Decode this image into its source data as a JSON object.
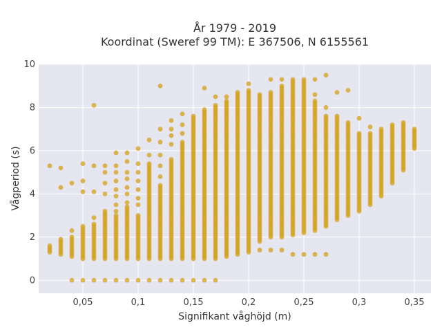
{
  "chart_data": {
    "type": "scatter",
    "title_line1": "År 1979 - 2019",
    "title_line2": "Koordinat (Sweref 99 TM): E 367506, N 6155561",
    "xlabel": "Signifikant våghöjd (m)",
    "ylabel": "Vågperiod (s)",
    "xlim": [
      0.01,
      0.365
    ],
    "ylim": [
      -0.6,
      10
    ],
    "x_ticks": [
      0.05,
      0.1,
      0.15,
      0.2,
      0.25,
      0.3,
      0.35
    ],
    "x_tick_labels": [
      "0,05",
      "0,1",
      "0,15",
      "0,2",
      "0,25",
      "0,3",
      "0,35"
    ],
    "y_ticks": [
      0,
      2,
      4,
      6,
      8,
      10
    ],
    "y_tick_labels": [
      "0",
      "2",
      "4",
      "6",
      "8",
      "10"
    ],
    "grid": true,
    "marker_color": "#D4A017",
    "plot_bg": "#E5E6F0",
    "columns": [
      {
        "x": 0.02,
        "ymin": 1.3,
        "ymax": 1.6,
        "extra": [
          5.3
        ]
      },
      {
        "x": 0.03,
        "ymin": 1.2,
        "ymax": 1.9,
        "extra": [
          5.2,
          4.3
        ]
      },
      {
        "x": 0.04,
        "ymin": 1.1,
        "ymax": 2.0,
        "extra": [
          2.3,
          4.5,
          0
        ]
      },
      {
        "x": 0.05,
        "ymin": 1.0,
        "ymax": 2.5,
        "extra": [
          4.1,
          4.6,
          5.4,
          0
        ]
      },
      {
        "x": 0.06,
        "ymin": 1.0,
        "ymax": 2.6,
        "extra": [
          4.1,
          5.3,
          8.1,
          2.9,
          0
        ]
      },
      {
        "x": 0.07,
        "ymin": 1.0,
        "ymax": 3.2,
        "extra": [
          4.0,
          4.5,
          5.0,
          5.3,
          0
        ]
      },
      {
        "x": 0.08,
        "ymin": 1.0,
        "ymax": 3.0,
        "extra": [
          3.2,
          3.5,
          3.9,
          4.2,
          4.6,
          5.0,
          5.3,
          5.9,
          0
        ]
      },
      {
        "x": 0.09,
        "ymin": 1.0,
        "ymax": 3.4,
        "extra": [
          3.6,
          4.0,
          4.3,
          4.7,
          5.0,
          5.5,
          5.9,
          0
        ]
      },
      {
        "x": 0.1,
        "ymin": 1.0,
        "ymax": 3.0,
        "extra": [
          3.5,
          3.8,
          4.2,
          4.6,
          5.0,
          5.4,
          6.1,
          0
        ]
      },
      {
        "x": 0.11,
        "ymin": 1.0,
        "ymax": 5.4,
        "extra": [
          5.8,
          6.5,
          0
        ]
      },
      {
        "x": 0.12,
        "ymin": 1.0,
        "ymax": 4.4,
        "extra": [
          4.8,
          5.3,
          5.8,
          6.4,
          7.0,
          9.0,
          0
        ]
      },
      {
        "x": 0.13,
        "ymin": 1.0,
        "ymax": 5.6,
        "extra": [
          6.3,
          6.7,
          7.0,
          7.4,
          0
        ]
      },
      {
        "x": 0.14,
        "ymin": 1.0,
        "ymax": 6.4,
        "extra": [
          6.8,
          7.2,
          7.7,
          0
        ]
      },
      {
        "x": 0.15,
        "ymin": 1.0,
        "ymax": 7.6,
        "extra": [
          0
        ]
      },
      {
        "x": 0.16,
        "ymin": 1.0,
        "ymax": 7.9,
        "extra": [
          8.9,
          0
        ]
      },
      {
        "x": 0.17,
        "ymin": 1.0,
        "ymax": 8.1,
        "extra": [
          8.5,
          0
        ]
      },
      {
        "x": 0.18,
        "ymin": 1.1,
        "ymax": 8.3,
        "extra": [
          8.5
        ]
      },
      {
        "x": 0.19,
        "ymin": 1.2,
        "ymax": 8.7,
        "extra": []
      },
      {
        "x": 0.2,
        "ymin": 1.3,
        "ymax": 8.8,
        "extra": [
          9.1
        ]
      },
      {
        "x": 0.21,
        "ymin": 1.8,
        "ymax": 8.6,
        "extra": [
          1.4
        ]
      },
      {
        "x": 0.22,
        "ymin": 2.0,
        "ymax": 8.7,
        "extra": [
          1.4,
          9.3
        ]
      },
      {
        "x": 0.23,
        "ymin": 2.0,
        "ymax": 9.0,
        "extra": [
          1.4,
          9.3
        ]
      },
      {
        "x": 0.24,
        "ymin": 2.1,
        "ymax": 9.3,
        "extra": [
          1.2
        ]
      },
      {
        "x": 0.25,
        "ymin": 2.2,
        "ymax": 9.3,
        "extra": [
          1.2
        ]
      },
      {
        "x": 0.26,
        "ymin": 2.3,
        "ymax": 8.3,
        "extra": [
          1.2,
          8.6,
          9.3
        ]
      },
      {
        "x": 0.27,
        "ymin": 2.5,
        "ymax": 7.6,
        "extra": [
          1.2,
          8.0,
          9.5
        ]
      },
      {
        "x": 0.28,
        "ymin": 2.8,
        "ymax": 7.6,
        "extra": [
          8.7
        ]
      },
      {
        "x": 0.29,
        "ymin": 3.0,
        "ymax": 7.3,
        "extra": [
          8.8
        ]
      },
      {
        "x": 0.3,
        "ymin": 3.2,
        "ymax": 6.8,
        "extra": [
          7.5
        ]
      },
      {
        "x": 0.31,
        "ymin": 3.5,
        "ymax": 6.8,
        "extra": [
          7.1
        ]
      },
      {
        "x": 0.32,
        "ymin": 3.9,
        "ymax": 6.9,
        "extra": [
          7.0
        ]
      },
      {
        "x": 0.33,
        "ymin": 4.5,
        "ymax": 7.2,
        "extra": []
      },
      {
        "x": 0.34,
        "ymin": 5.1,
        "ymax": 7.3,
        "extra": []
      },
      {
        "x": 0.35,
        "ymin": 6.1,
        "ymax": 7.0,
        "extra": []
      }
    ]
  }
}
